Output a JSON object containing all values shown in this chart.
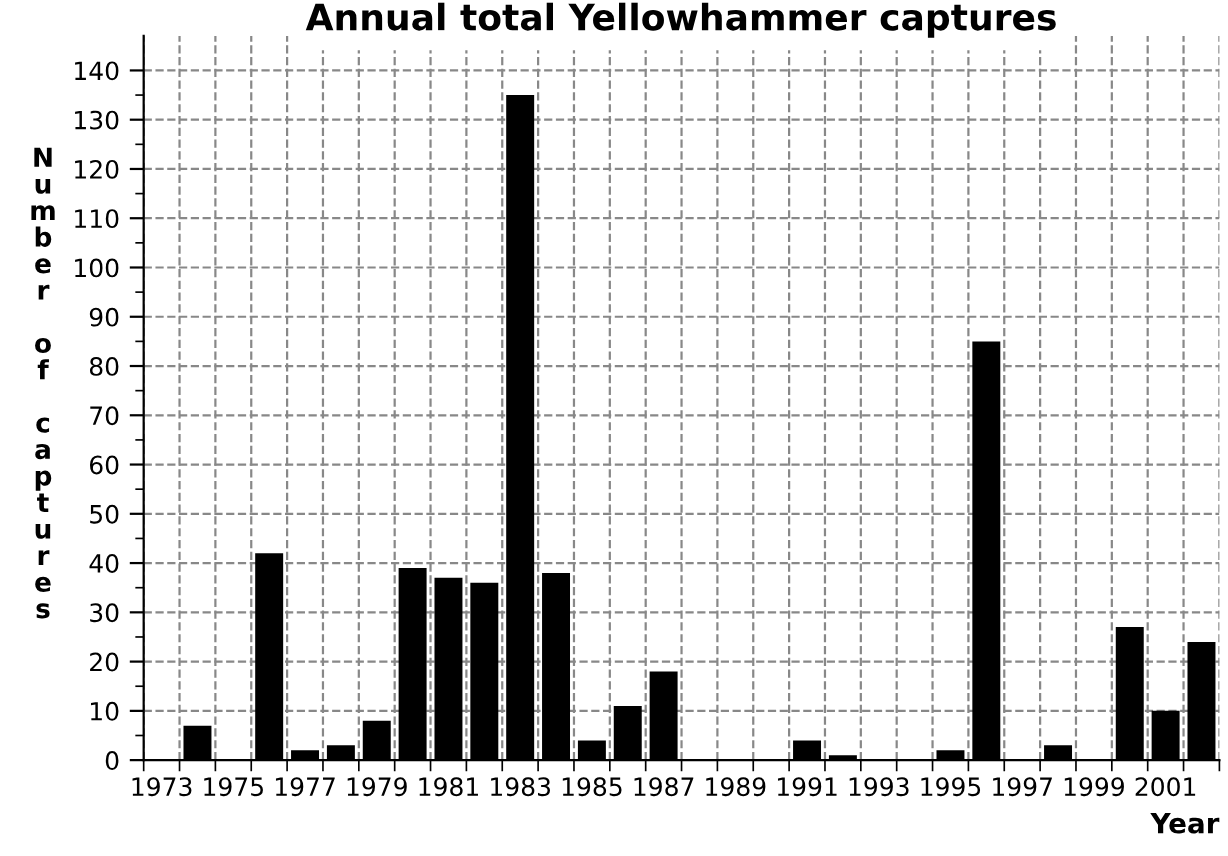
{
  "chart_data": {
    "type": "bar",
    "title": "Annual total Yellowhammer captures",
    "xlabel": "Year",
    "ylabel": "Number of captures",
    "categories": [
      "1973",
      null,
      "1975",
      null,
      "1977",
      null,
      "1979",
      null,
      "1981",
      null,
      "1983",
      null,
      "1985",
      null,
      "1987",
      null,
      "1989",
      null,
      "1991",
      null,
      "1993",
      null,
      "1995",
      null,
      "1997",
      null,
      "1999",
      null,
      "2001",
      null
    ],
    "values": [
      0,
      7,
      0,
      42,
      2,
      3,
      8,
      39,
      37,
      36,
      135,
      38,
      4,
      11,
      18,
      0,
      0,
      0,
      4,
      1,
      0,
      0,
      2,
      85,
      0,
      3,
      0,
      27,
      10,
      24
    ],
    "color": "#000000",
    "ylim": [
      0,
      147
    ],
    "yticks": [
      0,
      10,
      20,
      30,
      40,
      50,
      60,
      70,
      80,
      90,
      100,
      110,
      120,
      130,
      140
    ],
    "grid": true,
    "line_style": "dashed",
    "legend": false
  }
}
